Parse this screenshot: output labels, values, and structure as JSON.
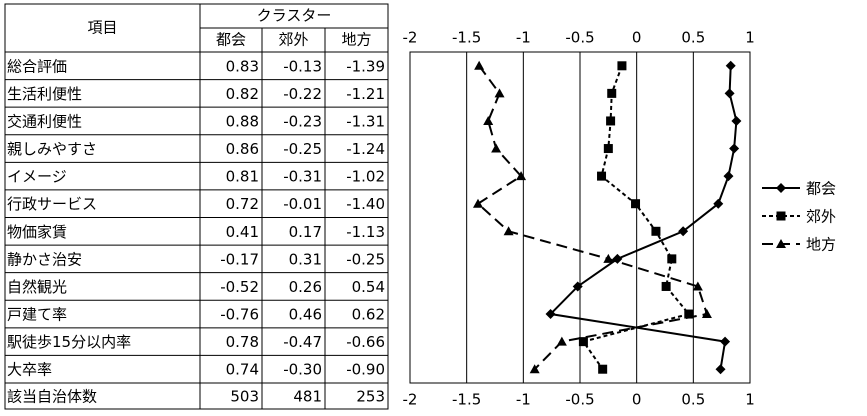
{
  "table": {
    "header": {
      "item": "項目",
      "cluster": "クラスター"
    },
    "count_row": {
      "label": "該当自治体数",
      "values": [
        503,
        481,
        253
      ]
    }
  },
  "chart_data": {
    "type": "line",
    "orientation": "horizontal",
    "categories": [
      "総合評価",
      "生活利便性",
      "交通利便性",
      "親しみやすさ",
      "イメージ",
      "行政サービス",
      "物価家賃",
      "静かさ治安",
      "自然観光",
      "戸建て率",
      "駅徒歩15分以内率",
      "大卒率"
    ],
    "series": [
      {
        "name": "都会",
        "color": "#000000",
        "marker": "diamond",
        "dash": "solid",
        "values": [
          0.83,
          0.82,
          0.88,
          0.86,
          0.81,
          0.72,
          0.41,
          -0.17,
          -0.52,
          -0.76,
          0.78,
          0.74
        ],
        "value_labels": [
          "0.83",
          "0.82",
          "0.88",
          "0.86",
          "0.81",
          "0.72",
          "0.41",
          "-0.17",
          "-0.52",
          "-0.76",
          "0.78",
          "0.74"
        ]
      },
      {
        "name": "郊外",
        "color": "#000000",
        "marker": "square",
        "dash": "short",
        "values": [
          -0.13,
          -0.22,
          -0.23,
          -0.25,
          -0.31,
          -0.01,
          0.17,
          0.31,
          0.26,
          0.46,
          -0.47,
          -0.3
        ],
        "value_labels": [
          "-0.13",
          "-0.22",
          "-0.23",
          "-0.25",
          "-0.31",
          "-0.01",
          "0.17",
          "0.31",
          "0.26",
          "0.46",
          "-0.47",
          "-0.30"
        ]
      },
      {
        "name": "地方",
        "color": "#000000",
        "marker": "triangle",
        "dash": "long",
        "values": [
          -1.39,
          -1.21,
          -1.31,
          -1.24,
          -1.02,
          -1.4,
          -1.13,
          -0.25,
          0.54,
          0.62,
          -0.66,
          -0.9
        ],
        "value_labels": [
          "-1.39",
          "-1.21",
          "-1.31",
          "-1.24",
          "-1.02",
          "-1.40",
          "-1.13",
          "-0.25",
          "0.54",
          "0.62",
          "-0.66",
          "-0.90"
        ]
      }
    ],
    "xlim": [
      -2,
      1
    ],
    "xticks": [
      -2,
      -1.5,
      -1,
      -0.5,
      0,
      0.5,
      1
    ],
    "grid": true,
    "legend": "right"
  }
}
